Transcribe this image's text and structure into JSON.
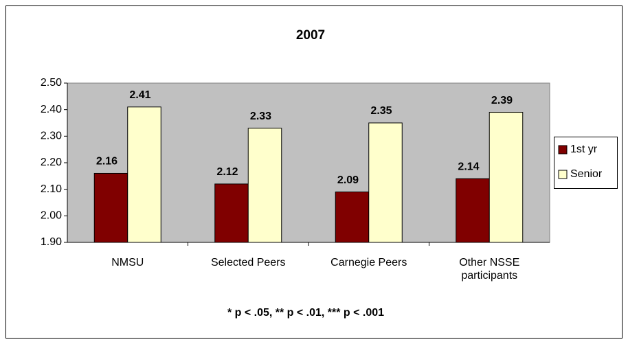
{
  "chart_data": {
    "type": "bar",
    "title": "2007",
    "categories": [
      "NMSU",
      "Selected Peers",
      "Carnegie Peers",
      "Other NSSE participants"
    ],
    "series": [
      {
        "name": "1st yr",
        "color": "#800000",
        "values": [
          2.16,
          2.12,
          2.09,
          2.14
        ]
      },
      {
        "name": "Senior",
        "color": "#ffffcc",
        "values": [
          2.41,
          2.33,
          2.35,
          2.39
        ]
      }
    ],
    "ylim": [
      1.9,
      2.5
    ],
    "yticks": [
      {
        "value": 1.9,
        "label": "1.90"
      },
      {
        "value": 2.0,
        "label": "2.00"
      },
      {
        "value": 2.1,
        "label": "2.10"
      },
      {
        "value": 2.2,
        "label": "2.20"
      },
      {
        "value": 2.3,
        "label": "2.30"
      },
      {
        "value": 2.4,
        "label": "2.40"
      },
      {
        "value": 2.5,
        "label": "2.50"
      }
    ],
    "annotation": "* p < .05, ** p < .01, *** p < .001",
    "legend": "right",
    "grid": false,
    "plot_background": "#c0c0c0"
  }
}
